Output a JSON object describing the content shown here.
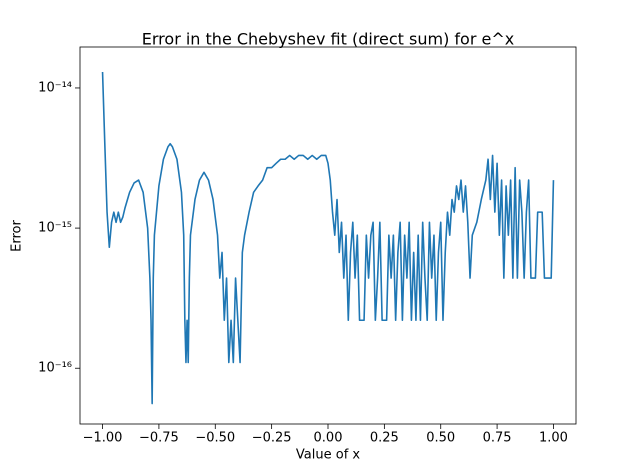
{
  "chart_data": {
    "type": "line",
    "title": "Error in the Chebyshev fit (direct sum) for e^x",
    "x_label": "Value of x",
    "y_label": "Error",
    "yscale": "log",
    "color": "#1f77b4",
    "xlim": [
      -1.1,
      1.1
    ],
    "ylim": [
      4e-17,
      1.96e-14
    ],
    "xticks": [
      {
        "value": -1,
        "label": "−1.00"
      },
      {
        "value": -0.75,
        "label": "−0.75"
      },
      {
        "value": -0.5,
        "label": "−0.50"
      },
      {
        "value": -0.25,
        "label": "−0.25"
      },
      {
        "value": 0,
        "label": "0.00"
      },
      {
        "value": 0.25,
        "label": "0.25"
      },
      {
        "value": 0.5,
        "label": "0.50"
      },
      {
        "value": 0.75,
        "label": "0.75"
      },
      {
        "value": 1,
        "label": "1.00"
      }
    ],
    "yticks": [
      {
        "value": 1e-16,
        "label": "10⁻¹⁶"
      },
      {
        "value": 1e-15,
        "label": "10⁻¹⁵"
      },
      {
        "value": 1e-14,
        "label": "10⁻¹⁴"
      }
    ],
    "x": [
      -1.0,
      -0.99,
      -0.98,
      -0.97,
      -0.96,
      -0.95,
      -0.94,
      -0.93,
      -0.92,
      -0.91,
      -0.9,
      -0.88,
      -0.86,
      -0.84,
      -0.82,
      -0.8,
      -0.79,
      -0.785,
      -0.78,
      -0.775,
      -0.77,
      -0.75,
      -0.73,
      -0.71,
      -0.7,
      -0.69,
      -0.67,
      -0.65,
      -0.64,
      -0.635,
      -0.63,
      -0.625,
      -0.62,
      -0.615,
      -0.61,
      -0.59,
      -0.57,
      -0.55,
      -0.53,
      -0.51,
      -0.49,
      -0.48,
      -0.47,
      -0.46,
      -0.45,
      -0.44,
      -0.43,
      -0.42,
      -0.41,
      -0.4,
      -0.39,
      -0.38,
      -0.37,
      -0.35,
      -0.33,
      -0.31,
      -0.29,
      -0.27,
      -0.25,
      -0.23,
      -0.21,
      -0.19,
      -0.17,
      -0.15,
      -0.13,
      -0.11,
      -0.09,
      -0.07,
      -0.05,
      -0.03,
      -0.01,
      0.0,
      0.01,
      0.02,
      0.03,
      0.04,
      0.05,
      0.06,
      0.07,
      0.08,
      0.09,
      0.1,
      0.11,
      0.12,
      0.13,
      0.14,
      0.16,
      0.17,
      0.18,
      0.19,
      0.2,
      0.21,
      0.22,
      0.23,
      0.24,
      0.26,
      0.27,
      0.28,
      0.29,
      0.3,
      0.31,
      0.32,
      0.33,
      0.34,
      0.35,
      0.36,
      0.37,
      0.38,
      0.39,
      0.4,
      0.41,
      0.42,
      0.43,
      0.44,
      0.45,
      0.46,
      0.47,
      0.48,
      0.49,
      0.5,
      0.51,
      0.52,
      0.53,
      0.54,
      0.55,
      0.56,
      0.57,
      0.58,
      0.59,
      0.6,
      0.61,
      0.62,
      0.63,
      0.64,
      0.66,
      0.68,
      0.7,
      0.71,
      0.72,
      0.73,
      0.74,
      0.75,
      0.76,
      0.77,
      0.78,
      0.79,
      0.8,
      0.81,
      0.82,
      0.83,
      0.84,
      0.85,
      0.86,
      0.87,
      0.88,
      0.89,
      0.9,
      0.92,
      0.93,
      0.95,
      0.96,
      0.99,
      1.0
    ],
    "values": [
      1.3e-14,
      4e-15,
      1.3e-15,
      7.3e-16,
      1.1e-15,
      1.3e-15,
      1.1e-15,
      1.3e-15,
      1.1e-15,
      1.2e-15,
      1.4e-15,
      1.8e-15,
      2.1e-15,
      2.2e-15,
      1.8e-15,
      1e-15,
      4.4e-16,
      2.2e-16,
      5.6e-17,
      4.4e-16,
      8.9e-16,
      2e-15,
      3.1e-15,
      3.8e-15,
      4e-15,
      3.8e-15,
      3.1e-15,
      1.8e-15,
      8.9e-16,
      2.2e-16,
      1.1e-16,
      2.2e-16,
      1.1e-16,
      4.4e-16,
      8.9e-16,
      1.6e-15,
      2.2e-15,
      2.5e-15,
      2.2e-15,
      1.6e-15,
      8.9e-16,
      4.4e-16,
      6.7e-16,
      2.2e-16,
      4.4e-16,
      1.1e-16,
      2.2e-16,
      1.1e-16,
      4.4e-16,
      2.2e-16,
      1.1e-16,
      6.7e-16,
      8.9e-16,
      1.3e-15,
      1.8e-15,
      2e-15,
      2.2e-15,
      2.7e-15,
      2.7e-15,
      2.9e-15,
      3.1e-15,
      3.1e-15,
      3.3e-15,
      3.1e-15,
      3.3e-15,
      3.3e-15,
      3.1e-15,
      3.3e-15,
      3.1e-15,
      3.3e-15,
      3.3e-15,
      2.9e-15,
      2.2e-15,
      1.3e-15,
      8.9e-16,
      1.6e-15,
      6.7e-16,
      1.1e-15,
      4.4e-16,
      8.9e-16,
      2.2e-16,
      6.7e-16,
      1.1e-15,
      4.4e-16,
      8.9e-16,
      2.2e-16,
      2.2e-16,
      8.9e-16,
      4.4e-16,
      8.9e-16,
      1.1e-15,
      2.2e-16,
      4.4e-16,
      1.1e-15,
      2.2e-16,
      2.2e-16,
      8.9e-16,
      4.4e-16,
      8.9e-16,
      2.2e-16,
      6.7e-16,
      1.1e-15,
      2.2e-16,
      8.9e-16,
      4.4e-16,
      1.1e-15,
      2.2e-16,
      6.7e-16,
      2.2e-16,
      8.9e-16,
      2.2e-16,
      1.1e-15,
      4.4e-16,
      2.2e-16,
      1.1e-15,
      4.4e-16,
      8.9e-16,
      2.2e-16,
      6.7e-16,
      1.1e-15,
      2.2e-16,
      6.7e-16,
      1.3e-15,
      8.9e-16,
      1.6e-15,
      1.3e-15,
      2e-15,
      1.6e-15,
      2.2e-15,
      1.3e-15,
      2e-15,
      1.1e-15,
      4.4e-16,
      8.9e-16,
      1.1e-15,
      1.6e-15,
      2.2e-15,
      3.1e-15,
      1.6e-15,
      3.3e-15,
      1.3e-15,
      2.9e-15,
      8.9e-16,
      2.2e-15,
      4.4e-16,
      2e-15,
      8.9e-16,
      2.2e-15,
      4.4e-16,
      2.7e-15,
      4.4e-16,
      2.2e-15,
      1.3e-15,
      4.4e-16,
      1.3e-15,
      2.2e-15,
      4.4e-16,
      4.4e-16,
      1.3e-15,
      1.3e-15,
      4.4e-16,
      4.4e-16,
      2.2e-15
    ]
  }
}
